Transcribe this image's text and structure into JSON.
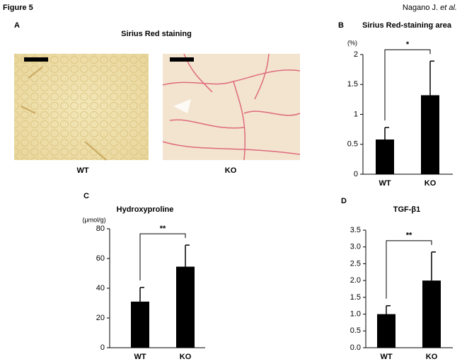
{
  "header": {
    "figure": "Figure 5",
    "authors": "Nagano J.",
    "authors_italic": "et al."
  },
  "panel_a": {
    "label": "A",
    "title": "Sirius Red staining",
    "images": [
      "WT",
      "KO"
    ]
  },
  "chart_data": [
    {
      "type": "bar",
      "panel": "B",
      "title": "Sirius Red-staining area",
      "y_label": "(%)",
      "categories": [
        "WT",
        "KO"
      ],
      "values": [
        0.58,
        1.32
      ],
      "errors": [
        0.2,
        0.57
      ],
      "significance": "*",
      "color": "#000000",
      "ylim": [
        0,
        2
      ],
      "yticks": [
        0,
        0.5,
        1,
        1.5,
        2
      ]
    },
    {
      "type": "bar",
      "panel": "C",
      "title": "Hydroxyproline",
      "y_label": "(μmol/g)",
      "categories": [
        "WT",
        "KO"
      ],
      "values": [
        31,
        54.5
      ],
      "errors": [
        9.5,
        14.5
      ],
      "significance": "**",
      "color": "#000000",
      "ylim": [
        0,
        80
      ],
      "yticks": [
        0,
        20,
        40,
        60,
        80
      ]
    },
    {
      "type": "bar",
      "panel": "D",
      "title": "TGF-β1",
      "categories": [
        "WT",
        "KO"
      ],
      "values": [
        1.0,
        2.0
      ],
      "errors": [
        0.25,
        0.85
      ],
      "significance": "**",
      "color": "#000000",
      "ylim": [
        0,
        3.5
      ],
      "yticks": [
        {
          "value": 0,
          "label": "0.0"
        },
        {
          "value": 0.5,
          "label": "0.5"
        },
        {
          "value": 1,
          "label": "1.0"
        },
        {
          "value": 1.5,
          "label": "1.5"
        },
        {
          "value": 2,
          "label": "2.0"
        },
        {
          "value": 2.5,
          "label": "2.5"
        },
        {
          "value": 3,
          "label": "3.0"
        },
        {
          "value": 3.5,
          "label": "3.5"
        }
      ]
    }
  ]
}
